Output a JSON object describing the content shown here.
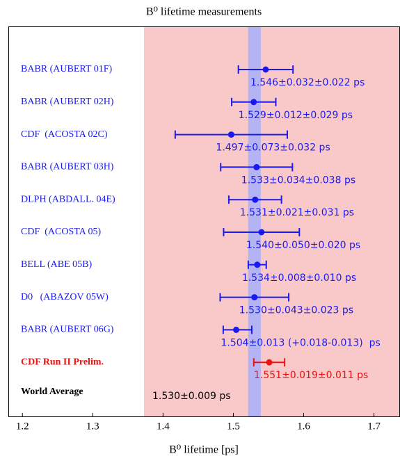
{
  "chart_data": {
    "type": "errorbar",
    "title": "B⁰ lifetime measurements",
    "x_label": "B⁰ lifetime [ps]",
    "categories": [
      "BABR (AUBERT 01F)",
      "BABR (AUBERT 02H)",
      "CDF  (ACOSTA 02C)",
      "BABR (AUBERT 03H)",
      "DLPH (ABDALL. 04E)",
      "CDF  (ACOSTA 05)",
      "BELL (ABE 05B)",
      "D0   (ABAZOV 05W)",
      "BABR (AUBERT 06G)",
      "CDF Run II Prelim."
    ],
    "values": [
      1.546,
      1.529,
      1.497,
      1.533,
      1.531,
      1.54,
      1.534,
      1.53,
      1.504,
      1.551
    ],
    "stat_errors": [
      0.032,
      0.012,
      0.073,
      0.034,
      0.021,
      0.05,
      0.008,
      0.043,
      0.013,
      0.019
    ],
    "syst_errors_plus": [
      0.022,
      0.029,
      0.032,
      0.038,
      0.031,
      0.02,
      0.01,
      0.023,
      0.018,
      0.011
    ],
    "syst_errors_minus": [
      0.022,
      0.029,
      0.032,
      0.038,
      0.031,
      0.02,
      0.01,
      0.023,
      0.013,
      0.011
    ],
    "value_labels": [
      "1.546±0.032±0.022 ps",
      "1.529±0.012±0.029 ps",
      "1.497±0.073±0.032 ps",
      "1.533±0.034±0.038 ps",
      "1.531±0.021±0.031 ps",
      "1.540±0.050±0.020 ps",
      "1.534±0.008±0.010 ps",
      "1.530±0.043±0.023 ps",
      "1.504±0.013 (+0.018-0.013)  ps",
      "1.551±0.019±0.011 ps"
    ],
    "colors": [
      "#1a1aee",
      "#1a1aee",
      "#1a1aee",
      "#1a1aee",
      "#1a1aee",
      "#1a1aee",
      "#1a1aee",
      "#1a1aee",
      "#1a1aee",
      "#ee1111"
    ],
    "average": {
      "name": "World Average",
      "value": 1.53,
      "error": 0.009,
      "label": "1.530±0.009 ps",
      "color": "#b4b4f4"
    },
    "xlim": [
      1.18,
      1.737
    ],
    "xticks": [
      1.2,
      1.3,
      1.4,
      1.5,
      1.6,
      1.7
    ]
  }
}
